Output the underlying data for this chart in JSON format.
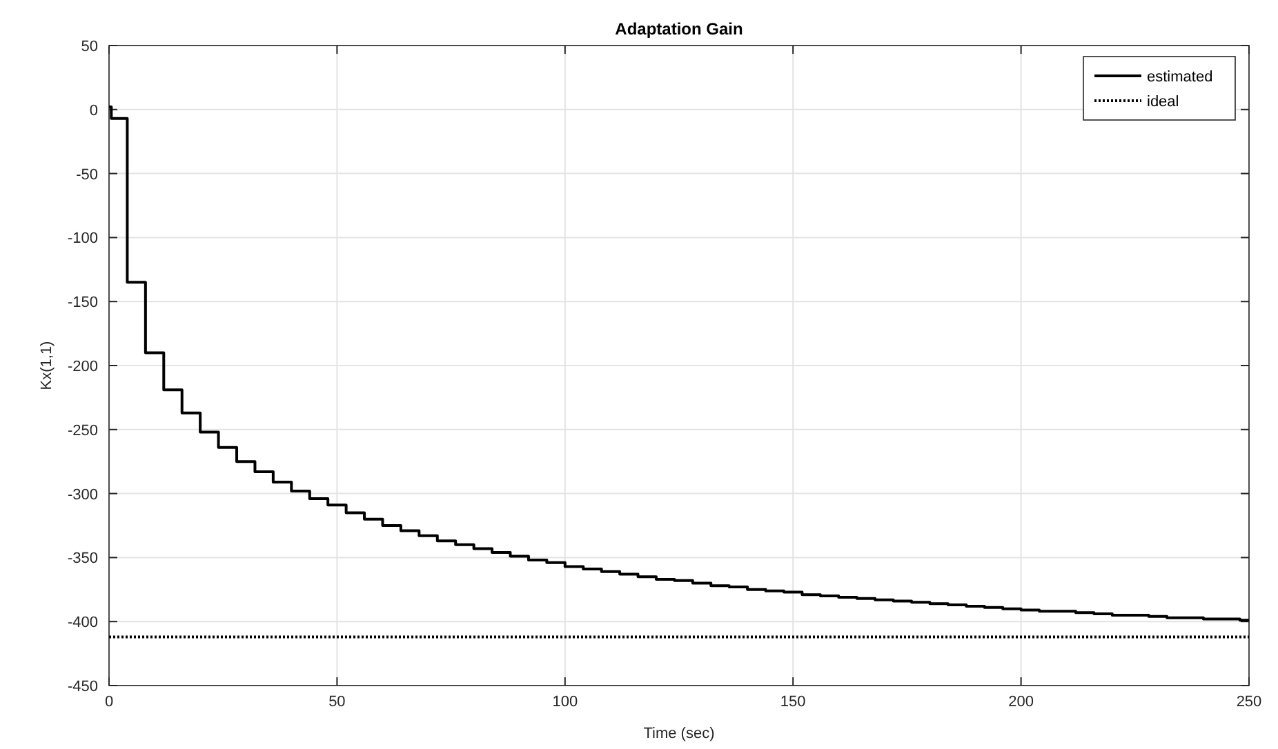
{
  "chart_data": {
    "type": "step",
    "title": "Adaptation Gain",
    "xlabel": "Time (sec)",
    "ylabel": "Kx(1,1)",
    "xlim": [
      0,
      250
    ],
    "xticks": [
      0,
      50,
      100,
      150,
      200,
      250
    ],
    "ylim": [
      -450,
      50
    ],
    "yticks": [
      -450,
      -400,
      -350,
      -300,
      -250,
      -200,
      -150,
      -100,
      -50,
      0,
      50
    ],
    "grid": true,
    "legend": "top right",
    "series": [
      {
        "name": "estimated",
        "color": "#000000",
        "line_style": "solid",
        "x": [
          0,
          0.5,
          4,
          8,
          12,
          16,
          20,
          24,
          28,
          32,
          36,
          40,
          44,
          48,
          52,
          56,
          60,
          64,
          68,
          72,
          76,
          80,
          84,
          88,
          92,
          96,
          100,
          104,
          108,
          112,
          116,
          120,
          124,
          128,
          132,
          136,
          140,
          144,
          148,
          152,
          156,
          160,
          164,
          168,
          172,
          176,
          180,
          184,
          188,
          192,
          196,
          200,
          204,
          208,
          212,
          216,
          220,
          224,
          228,
          232,
          236,
          240,
          244,
          248,
          250
        ],
        "values": [
          2,
          -7,
          -135,
          -190,
          -219,
          -237,
          -252,
          -264,
          -275,
          -283,
          -291,
          -298,
          -304,
          -309,
          -315,
          -320,
          -325,
          -329,
          -333,
          -337,
          -340,
          -343,
          -346,
          -349,
          -352,
          -354,
          -357,
          -359,
          -361,
          -363,
          -365,
          -367,
          -368,
          -370,
          -372,
          -373,
          -375,
          -376,
          -377,
          -379,
          -380,
          -381,
          -382,
          -383,
          -384,
          -385,
          -386,
          -387,
          -388,
          -389,
          -390,
          -391,
          -392,
          -392,
          -393,
          -394,
          -395,
          -395,
          -396,
          -397,
          -397,
          -398,
          -398,
          -399,
          -399
        ]
      },
      {
        "name": "ideal",
        "type": "line",
        "color": "#000000",
        "line_style": "dotted",
        "x": [
          0,
          250
        ],
        "values": [
          -412,
          -412
        ]
      }
    ]
  }
}
